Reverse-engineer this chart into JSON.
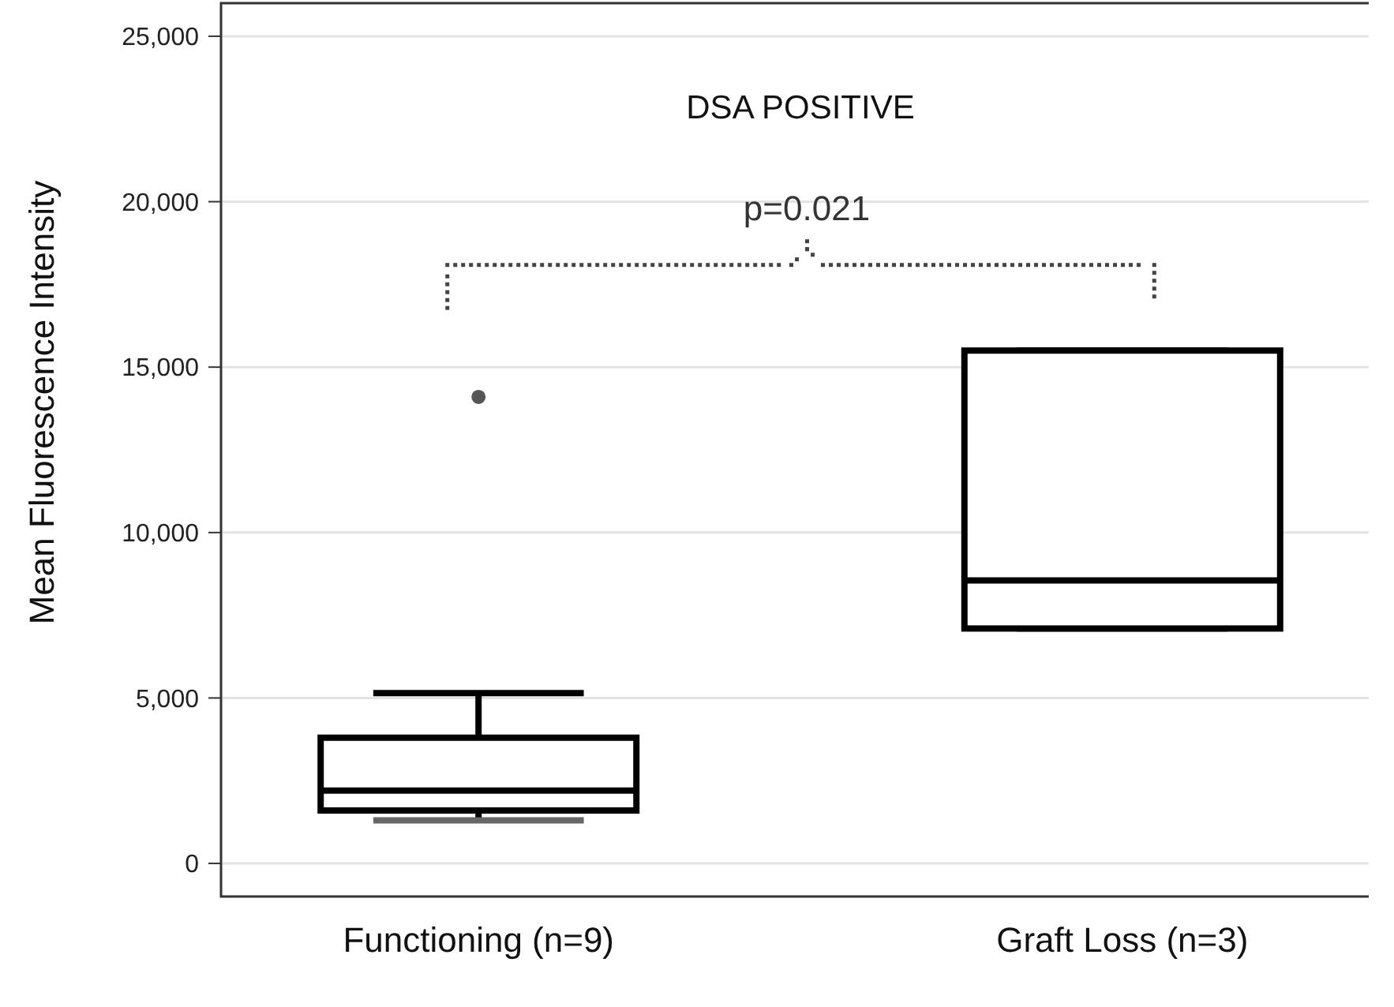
{
  "chart_data": {
    "type": "box",
    "title": "DSA POSITIVE",
    "ylabel": "Mean Fluorescence Intensity",
    "categories": [
      "Functioning (n=9)",
      "Graft Loss (n=3)"
    ],
    "boxes": [
      {
        "low": 1300,
        "q1": 1600,
        "median": 2200,
        "q3": 3800,
        "high": 5150,
        "outliers": [
          14100
        ]
      },
      {
        "low": 7100,
        "q1": 7100,
        "median": 8550,
        "q3": 15500,
        "high": 15500
      }
    ],
    "ylim": [
      -1000,
      26000
    ],
    "yticks": [
      {
        "value": 0,
        "label": "0"
      },
      {
        "value": 5000,
        "label": "5,000"
      },
      {
        "value": 10000,
        "label": "10,000"
      },
      {
        "value": 15000,
        "label": "15,000"
      },
      {
        "value": 20000,
        "label": "20,000"
      },
      {
        "value": 25000,
        "label": "25,000"
      }
    ],
    "grid": "y",
    "annotations": [
      "p=0.021"
    ]
  }
}
